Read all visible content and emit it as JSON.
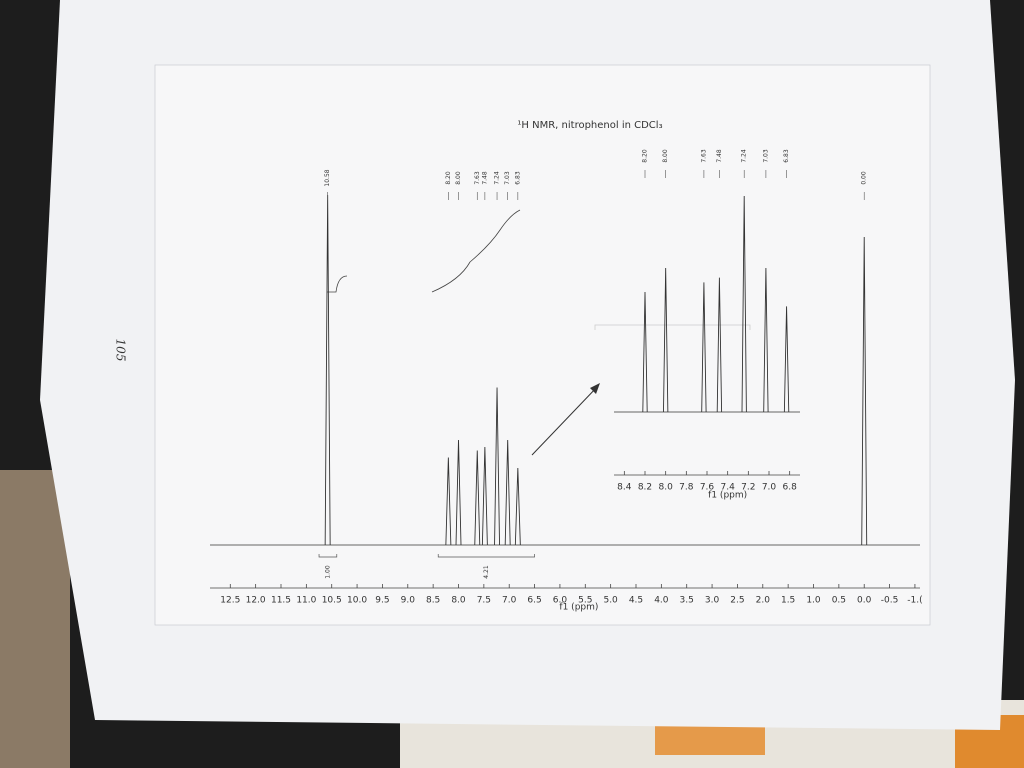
{
  "page_number": "105",
  "chart_data": [
    {
      "type": "spectrum",
      "title": "¹H NMR, nitrophenol in CDCl₃",
      "x_label": "f1 (ppm)",
      "xlim": [
        12.9,
        -1.1
      ],
      "xticks": [
        12.5,
        {
          "value": 12,
          "label": "12.0"
        },
        11.5,
        {
          "value": 11,
          "label": "11.0"
        },
        10.5,
        {
          "value": 10,
          "label": "10.0"
        },
        9.5,
        {
          "value": 9,
          "label": "9.0"
        },
        8.5,
        {
          "value": 8,
          "label": "8.0"
        },
        7.5,
        {
          "value": 7,
          "label": "7.0"
        },
        6.5,
        {
          "value": 6,
          "label": "6.0"
        },
        5.5,
        {
          "value": 5,
          "label": "5.0"
        },
        4.5,
        {
          "value": 4,
          "label": "4.0"
        },
        3.5,
        {
          "value": 3,
          "label": "3.0"
        },
        2.5,
        {
          "value": 2,
          "label": "2.0"
        },
        1.5,
        {
          "value": 1,
          "label": "1.0"
        },
        0.5,
        {
          "value": 0,
          "label": "0.0"
        },
        -0.5,
        {
          "value": -1,
          "label": "-1.("
        }
      ],
      "x": [
        10.58,
        8.2,
        8.0,
        7.63,
        7.48,
        7.24,
        7.03,
        6.83,
        0.0
      ],
      "peak_labels": [
        "10.58",
        "8.20",
        "8.00",
        "7.63",
        "7.48",
        "7.24",
        "7.03",
        "6.83",
        "0.00"
      ],
      "values": [
        100,
        25,
        30,
        27,
        28,
        45,
        30,
        22,
        88
      ],
      "color": "#333333",
      "integrals": [
        {
          "range": [
            10.75,
            10.4
          ],
          "value": {
            "value": 1,
            "label": "1.00"
          }
        },
        {
          "range": [
            8.4,
            6.5
          ],
          "value": 4.21
        }
      ]
    },
    {
      "type": "spectrum",
      "x_label": "f1 (ppm)",
      "xlim": [
        8.5,
        6.7
      ],
      "xticks": [
        8.4,
        8.2,
        {
          "value": 8,
          "label": "8.0"
        },
        7.8,
        7.6,
        7.4,
        7.2,
        {
          "value": 7,
          "label": "7.0"
        },
        6.8
      ],
      "x": [
        8.2,
        8.0,
        7.63,
        7.48,
        7.24,
        7.03,
        6.83
      ],
      "peak_labels": [
        "8.20",
        "8.00",
        "7.63",
        "7.48",
        "7.24",
        "7.03",
        "6.83"
      ],
      "values": [
        25,
        30,
        27,
        28,
        45,
        30,
        22
      ],
      "color": "#333333"
    }
  ]
}
